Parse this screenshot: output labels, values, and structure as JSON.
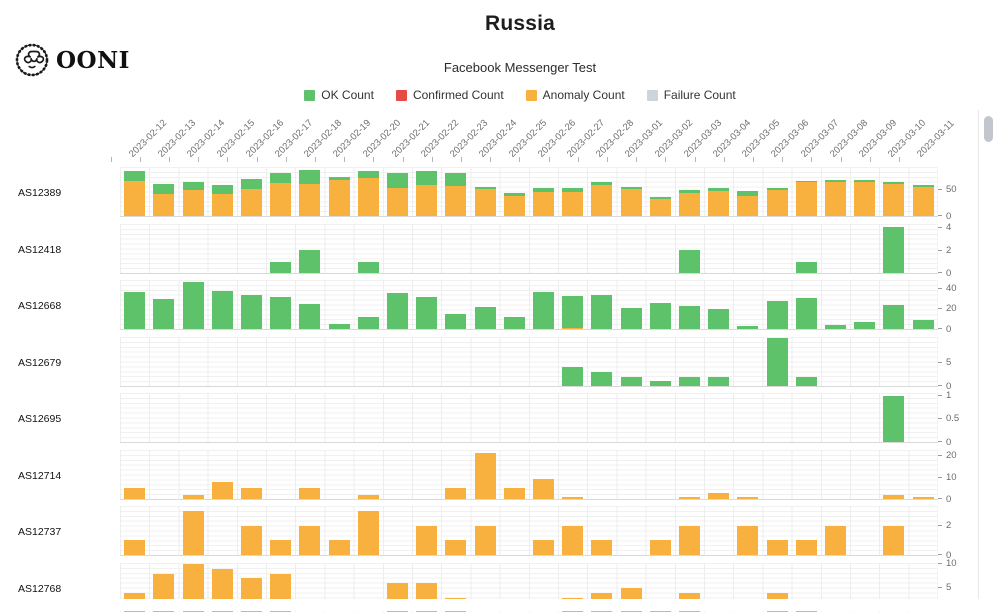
{
  "header": {
    "title": "Russia",
    "subtitle": "Facebook Messenger Test"
  },
  "logo": {
    "text": "OONI"
  },
  "legend": [
    {
      "label": "OK Count",
      "color": "#5EC26A"
    },
    {
      "label": "Confirmed Count",
      "color": "#E84B44"
    },
    {
      "label": "Anomaly Count",
      "color": "#F8B13F"
    },
    {
      "label": "Failure Count",
      "color": "#CDD4DB"
    }
  ],
  "colors": {
    "ok": "#5EC26A",
    "confirmed": "#E84B44",
    "anomaly": "#F8B13F",
    "failure": "#CDD4DB"
  },
  "chart_data": {
    "type": "bar",
    "stacked": true,
    "title": "Russia",
    "subtitle": "Facebook Messenger Test",
    "x": [
      "2023-02-12",
      "2023-02-13",
      "2023-02-14",
      "2023-02-15",
      "2023-02-16",
      "2023-02-17",
      "2023-02-18",
      "2023-02-19",
      "2023-02-20",
      "2023-02-21",
      "2023-02-22",
      "2023-02-23",
      "2023-02-24",
      "2023-02-25",
      "2023-02-26",
      "2023-02-27",
      "2023-02-28",
      "2023-03-01",
      "2023-03-02",
      "2023-03-03",
      "2023-03-04",
      "2023-03-05",
      "2023-03-06",
      "2023-03-07",
      "2023-03-08",
      "2023-03-09",
      "2023-03-10",
      "2023-03-11"
    ],
    "rows": [
      {
        "as_name": "AS12389",
        "ymax": 92,
        "yticks": [
          50,
          0
        ],
        "anomaly": [
          65,
          42,
          49,
          42,
          50,
          62,
          60,
          68,
          72,
          52,
          58,
          56,
          50,
          38,
          45,
          45,
          59,
          50,
          32,
          43,
          47,
          37,
          49,
          63,
          64,
          64,
          60,
          55
        ],
        "ok": [
          19,
          18,
          14,
          16,
          19,
          19,
          26,
          6,
          12,
          28,
          26,
          25,
          4,
          5,
          8,
          8,
          5,
          5,
          4,
          5,
          5,
          10,
          3,
          3,
          3,
          3,
          4,
          4
        ]
      },
      {
        "as_name": "AS12418",
        "ymax": 4.3,
        "yticks": [
          4,
          2,
          0
        ],
        "ok": [
          0,
          0,
          0,
          0,
          0,
          1,
          2,
          0,
          1,
          0,
          0,
          0,
          0,
          0,
          0,
          0,
          0,
          0,
          0,
          2,
          0,
          0,
          0,
          1,
          0,
          0,
          4,
          0
        ]
      },
      {
        "as_name": "AS12668",
        "ymax": 48,
        "yticks": [
          40,
          20,
          0
        ],
        "ok": [
          36,
          29,
          46,
          37,
          33,
          31,
          25,
          5,
          12,
          35,
          31,
          15,
          22,
          12,
          36,
          31,
          33,
          21,
          26,
          23,
          20,
          3,
          27,
          30,
          4,
          7,
          24,
          9
        ],
        "anomaly": [
          0,
          0,
          0,
          0,
          0,
          0,
          0,
          0,
          0,
          0,
          0,
          0,
          0,
          0,
          0,
          1,
          0,
          0,
          0,
          0,
          0,
          0,
          0,
          0,
          0,
          0,
          0,
          0
        ]
      },
      {
        "as_name": "AS12679",
        "ymax": 10.3,
        "yticks": [
          5,
          0
        ],
        "ok": [
          0,
          0,
          0,
          0,
          0,
          0,
          0,
          0,
          0,
          0,
          0,
          0,
          0,
          0,
          0,
          4,
          3,
          2,
          1,
          2,
          2,
          0,
          10,
          2,
          0,
          0,
          0,
          0
        ]
      },
      {
        "as_name": "AS12695",
        "ymax": 1.06,
        "yticks": [
          1,
          0.5,
          0
        ],
        "ok": [
          0,
          0,
          0,
          0,
          0,
          0,
          0,
          0,
          0,
          0,
          0,
          0,
          0,
          0,
          0,
          0,
          0,
          0,
          0,
          0,
          0,
          0,
          0,
          0,
          0,
          0,
          1,
          0
        ]
      },
      {
        "as_name": "AS12714",
        "ymax": 22.5,
        "yticks": [
          20,
          10,
          0
        ],
        "anomaly": [
          5,
          0,
          2,
          8,
          5,
          0,
          5,
          0,
          2,
          0,
          0,
          5,
          21,
          5,
          9,
          1,
          0,
          0,
          0,
          1,
          3,
          1,
          0,
          0,
          0,
          0,
          2,
          1
        ]
      },
      {
        "as_name": "AS12737",
        "ymax": 3.35,
        "yticks": [
          2,
          0
        ],
        "anomaly": [
          1,
          0,
          3,
          0,
          2,
          1,
          2,
          1,
          3,
          0,
          2,
          1,
          2,
          0,
          1,
          2,
          1,
          0,
          1,
          2,
          0,
          2,
          1,
          1,
          2,
          0,
          2,
          0
        ]
      },
      {
        "as_name": "AS12768",
        "ymax": 10.2,
        "yticks": [
          10,
          5
        ],
        "anomaly": [
          4,
          8,
          10,
          9,
          7,
          8,
          0,
          0,
          0,
          6,
          6,
          3,
          0,
          0,
          0,
          3,
          4,
          5,
          2,
          4,
          0,
          0,
          4,
          2,
          0,
          0,
          0,
          0
        ]
      }
    ]
  }
}
